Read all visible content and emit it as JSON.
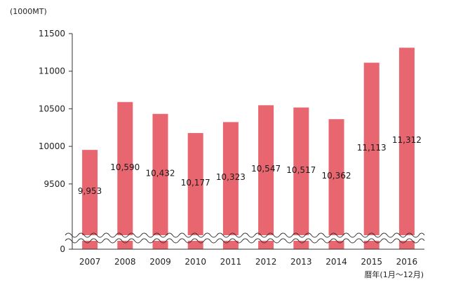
{
  "chart_data": {
    "type": "bar",
    "categories": [
      "2007",
      "2008",
      "2009",
      "2010",
      "2011",
      "2012",
      "2013",
      "2014",
      "2015",
      "2016"
    ],
    "values": [
      9953,
      10590,
      10432,
      10177,
      10323,
      10547,
      10517,
      10362,
      11113,
      11312
    ],
    "value_labels": [
      "9,953",
      "10,590",
      "10,432",
      "10,177",
      "10,323",
      "10,547",
      "10,517",
      "10,362",
      "11,113",
      "11,312"
    ],
    "y_ticks": [
      "11500",
      "11000",
      "10500",
      "10000",
      "9500",
      "0"
    ],
    "ylim": [
      9200,
      11500
    ],
    "axis_break": true,
    "ylabel": "(1000MT)",
    "xlabel": "暦年(1月～12月)",
    "bar_color": "#e8666f",
    "grid": false
  }
}
